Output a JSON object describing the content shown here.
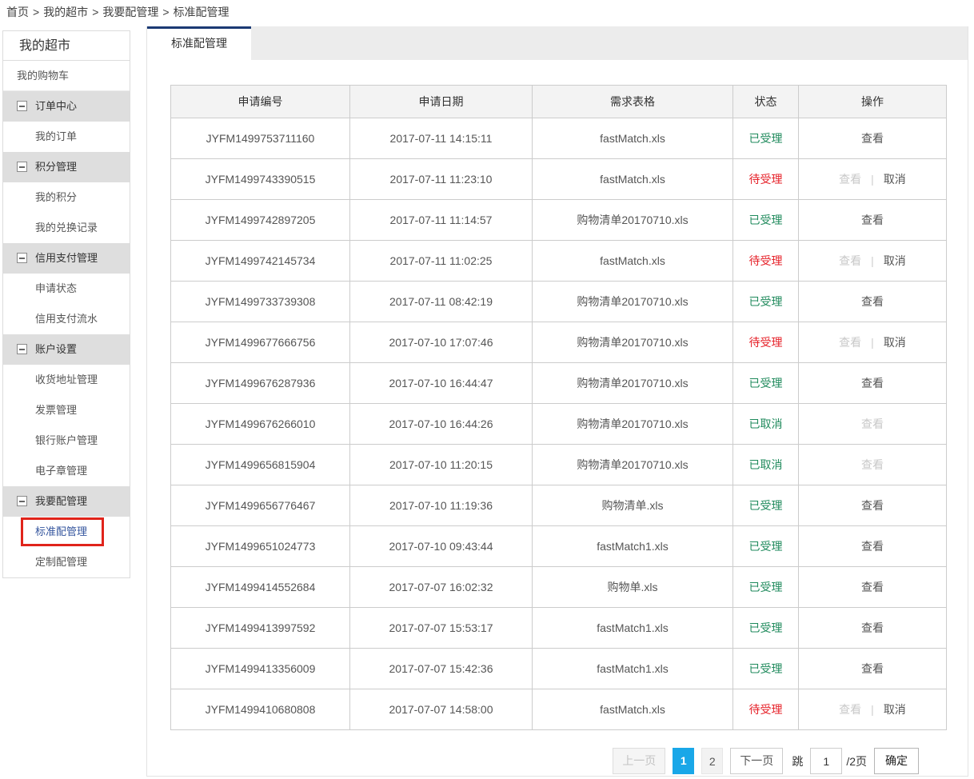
{
  "breadcrumb": {
    "separator": ">",
    "items": [
      "首页",
      "我的超市",
      "我要配管理",
      "标准配管理"
    ]
  },
  "sidebar": {
    "title": "我的超市",
    "items": [
      {
        "label": "我的购物车",
        "type": "item"
      },
      {
        "label": "订单中心",
        "type": "group"
      },
      {
        "label": "我的订单",
        "type": "sub"
      },
      {
        "label": "积分管理",
        "type": "group"
      },
      {
        "label": "我的积分",
        "type": "sub"
      },
      {
        "label": "我的兑换记录",
        "type": "sub"
      },
      {
        "label": "信用支付管理",
        "type": "group"
      },
      {
        "label": "申请状态",
        "type": "sub"
      },
      {
        "label": "信用支付流水",
        "type": "sub"
      },
      {
        "label": "账户设置",
        "type": "group"
      },
      {
        "label": "收货地址管理",
        "type": "sub"
      },
      {
        "label": "发票管理",
        "type": "sub"
      },
      {
        "label": "银行账户管理",
        "type": "sub"
      },
      {
        "label": "电子章管理",
        "type": "sub"
      },
      {
        "label": "我要配管理",
        "type": "group"
      },
      {
        "label": "标准配管理",
        "type": "sub",
        "active": true
      },
      {
        "label": "定制配管理",
        "type": "sub"
      }
    ]
  },
  "tabs": [
    {
      "label": "标准配管理",
      "active": true
    }
  ],
  "table": {
    "columns": [
      "申请编号",
      "申请日期",
      "需求表格",
      "状态",
      "操作"
    ],
    "rows": [
      {
        "id": "JYFM1499753711160",
        "date": "2017-07-11 14:15:11",
        "file": "fastMatch.xls",
        "status": "已受理",
        "status_type": "accepted",
        "actions": [
          {
            "label": "查看",
            "enabled": true
          }
        ]
      },
      {
        "id": "JYFM1499743390515",
        "date": "2017-07-11 11:23:10",
        "file": "fastMatch.xls",
        "status": "待受理",
        "status_type": "pending",
        "actions": [
          {
            "label": "查看",
            "enabled": false
          },
          {
            "label": "取消",
            "enabled": true
          }
        ]
      },
      {
        "id": "JYFM1499742897205",
        "date": "2017-07-11 11:14:57",
        "file": "购物清单20170710.xls",
        "status": "已受理",
        "status_type": "accepted",
        "actions": [
          {
            "label": "查看",
            "enabled": true
          }
        ]
      },
      {
        "id": "JYFM1499742145734",
        "date": "2017-07-11 11:02:25",
        "file": "fastMatch.xls",
        "status": "待受理",
        "status_type": "pending",
        "actions": [
          {
            "label": "查看",
            "enabled": false
          },
          {
            "label": "取消",
            "enabled": true
          }
        ]
      },
      {
        "id": "JYFM1499733739308",
        "date": "2017-07-11 08:42:19",
        "file": "购物清单20170710.xls",
        "status": "已受理",
        "status_type": "accepted",
        "actions": [
          {
            "label": "查看",
            "enabled": true
          }
        ]
      },
      {
        "id": "JYFM1499677666756",
        "date": "2017-07-10 17:07:46",
        "file": "购物清单20170710.xls",
        "status": "待受理",
        "status_type": "pending",
        "actions": [
          {
            "label": "查看",
            "enabled": false
          },
          {
            "label": "取消",
            "enabled": true
          }
        ]
      },
      {
        "id": "JYFM1499676287936",
        "date": "2017-07-10 16:44:47",
        "file": "购物清单20170710.xls",
        "status": "已受理",
        "status_type": "accepted",
        "actions": [
          {
            "label": "查看",
            "enabled": true
          }
        ]
      },
      {
        "id": "JYFM1499676266010",
        "date": "2017-07-10 16:44:26",
        "file": "购物清单20170710.xls",
        "status": "已取消",
        "status_type": "cancelled",
        "actions": [
          {
            "label": "查看",
            "enabled": false
          }
        ]
      },
      {
        "id": "JYFM1499656815904",
        "date": "2017-07-10 11:20:15",
        "file": "购物清单20170710.xls",
        "status": "已取消",
        "status_type": "cancelled",
        "actions": [
          {
            "label": "查看",
            "enabled": false
          }
        ]
      },
      {
        "id": "JYFM1499656776467",
        "date": "2017-07-10 11:19:36",
        "file": "购物清单.xls",
        "status": "已受理",
        "status_type": "accepted",
        "actions": [
          {
            "label": "查看",
            "enabled": true
          }
        ]
      },
      {
        "id": "JYFM1499651024773",
        "date": "2017-07-10 09:43:44",
        "file": "fastMatch1.xls",
        "status": "已受理",
        "status_type": "accepted",
        "actions": [
          {
            "label": "查看",
            "enabled": true
          }
        ]
      },
      {
        "id": "JYFM1499414552684",
        "date": "2017-07-07 16:02:32",
        "file": "购物单.xls",
        "status": "已受理",
        "status_type": "accepted",
        "actions": [
          {
            "label": "查看",
            "enabled": true
          }
        ]
      },
      {
        "id": "JYFM1499413997592",
        "date": "2017-07-07 15:53:17",
        "file": "fastMatch1.xls",
        "status": "已受理",
        "status_type": "accepted",
        "actions": [
          {
            "label": "查看",
            "enabled": true
          }
        ]
      },
      {
        "id": "JYFM1499413356009",
        "date": "2017-07-07 15:42:36",
        "file": "fastMatch1.xls",
        "status": "已受理",
        "status_type": "accepted",
        "actions": [
          {
            "label": "查看",
            "enabled": true
          }
        ]
      },
      {
        "id": "JYFM1499410680808",
        "date": "2017-07-07 14:58:00",
        "file": "fastMatch.xls",
        "status": "待受理",
        "status_type": "pending",
        "actions": [
          {
            "label": "查看",
            "enabled": false
          },
          {
            "label": "取消",
            "enabled": true
          }
        ]
      }
    ],
    "action_separator": "|"
  },
  "pagination": {
    "prev_label": "上一页",
    "pages": [
      "1",
      "2"
    ],
    "active_page": "1",
    "next_label": "下一页",
    "jump_label": "跳",
    "jump_value": "1",
    "total_label": "/2页",
    "confirm_label": "确定"
  },
  "colors": {
    "tab_accent": "#1b3a74",
    "active_page_bg": "#19a7e8",
    "status_green": "#1f8a5c",
    "status_red": "#e62129",
    "active_menu_text": "#35569e",
    "highlight_border_red": "#e0241b",
    "group_header_bg": "#dedede",
    "table_header_bg": "#f3f3f3"
  }
}
